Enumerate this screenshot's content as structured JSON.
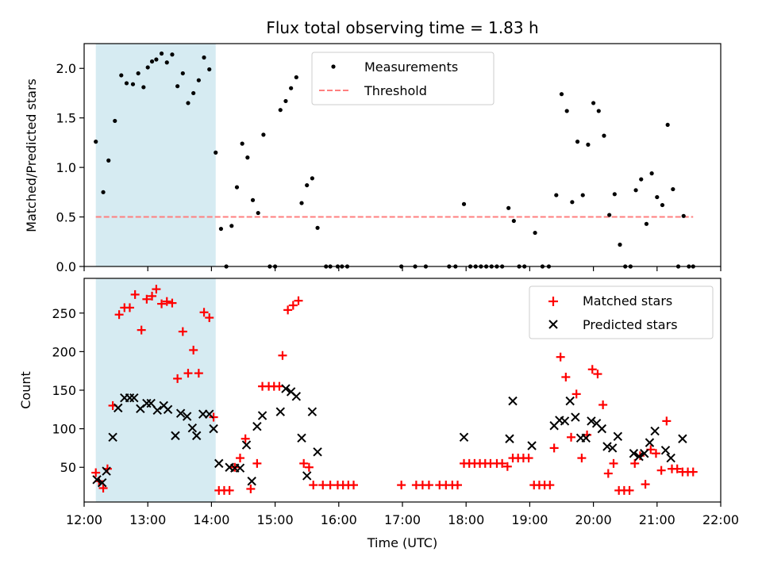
{
  "chart_data": [
    {
      "type": "scatter",
      "title": "Flux total observing time = 1.83 h",
      "xlabel": "",
      "ylabel": "Matched/Predicted stars",
      "xlim": [
        "12:00",
        "22:00"
      ],
      "ylim": [
        0,
        2.25
      ],
      "yticks": [
        "0.0",
        "0.5",
        "1.0",
        "1.5",
        "2.0"
      ],
      "grid": false,
      "legend_position": "upper-center",
      "highlight_span": {
        "x_start": "12:11",
        "x_end": "14:04",
        "color": "#add8e6"
      },
      "threshold": {
        "name": "Threshold",
        "y": 0.5,
        "x_start": "12:11",
        "x_end": "21:34",
        "color": "#ff7f7f"
      },
      "series": [
        {
          "name": "Measurements",
          "color": "#000000",
          "points": [
            [
              "12:11",
              1.26
            ],
            [
              "12:18",
              0.75
            ],
            [
              "12:23",
              1.07
            ],
            [
              "12:29",
              1.47
            ],
            [
              "12:35",
              1.93
            ],
            [
              "12:40",
              1.85
            ],
            [
              "12:46",
              1.84
            ],
            [
              "12:51",
              1.95
            ],
            [
              "12:56",
              1.81
            ],
            [
              "13:00",
              2.01
            ],
            [
              "13:04",
              2.07
            ],
            [
              "13:08",
              2.09
            ],
            [
              "13:13",
              2.15
            ],
            [
              "13:18",
              2.06
            ],
            [
              "13:23",
              2.14
            ],
            [
              "13:28",
              1.82
            ],
            [
              "13:33",
              1.95
            ],
            [
              "13:38",
              1.65
            ],
            [
              "13:43",
              1.75
            ],
            [
              "13:48",
              1.88
            ],
            [
              "13:53",
              2.11
            ],
            [
              "13:58",
              1.99
            ],
            [
              "14:04",
              1.15
            ],
            [
              "14:09",
              0.38
            ],
            [
              "14:14",
              0.0
            ],
            [
              "14:19",
              0.41
            ],
            [
              "14:24",
              0.8
            ],
            [
              "14:29",
              1.24
            ],
            [
              "14:34",
              1.1
            ],
            [
              "14:39",
              0.67
            ],
            [
              "14:44",
              0.54
            ],
            [
              "14:49",
              1.33
            ],
            [
              "14:55",
              0.0
            ],
            [
              "15:00",
              0.0
            ],
            [
              "15:05",
              1.58
            ],
            [
              "15:10",
              1.67
            ],
            [
              "15:15",
              1.8
            ],
            [
              "15:20",
              1.91
            ],
            [
              "15:25",
              0.64
            ],
            [
              "15:30",
              0.82
            ],
            [
              "15:35",
              0.89
            ],
            [
              "15:40",
              0.39
            ],
            [
              "15:48",
              0.0
            ],
            [
              "15:52",
              0.0
            ],
            [
              "15:59",
              0.0
            ],
            [
              "16:03",
              0.0
            ],
            [
              "16:08",
              0.0
            ],
            [
              "16:59",
              0.0
            ],
            [
              "17:12",
              0.0
            ],
            [
              "17:22",
              0.0
            ],
            [
              "17:44",
              0.0
            ],
            [
              "17:50",
              0.0
            ],
            [
              "17:58",
              0.63
            ],
            [
              "18:04",
              0.0
            ],
            [
              "18:09",
              0.0
            ],
            [
              "18:14",
              0.0
            ],
            [
              "18:19",
              0.0
            ],
            [
              "18:24",
              0.0
            ],
            [
              "18:29",
              0.0
            ],
            [
              "18:34",
              0.0
            ],
            [
              "18:40",
              0.59
            ],
            [
              "18:45",
              0.46
            ],
            [
              "18:50",
              0.0
            ],
            [
              "18:55",
              0.0
            ],
            [
              "19:05",
              0.34
            ],
            [
              "19:12",
              0.0
            ],
            [
              "19:18",
              0.0
            ],
            [
              "19:25",
              0.72
            ],
            [
              "19:30",
              1.74
            ],
            [
              "19:35",
              1.57
            ],
            [
              "19:40",
              0.65
            ],
            [
              "19:45",
              1.26
            ],
            [
              "19:50",
              0.72
            ],
            [
              "19:55",
              1.23
            ],
            [
              "20:00",
              1.65
            ],
            [
              "20:05",
              1.57
            ],
            [
              "20:10",
              1.32
            ],
            [
              "20:15",
              0.52
            ],
            [
              "20:20",
              0.73
            ],
            [
              "20:25",
              0.22
            ],
            [
              "20:30",
              0.0
            ],
            [
              "20:35",
              0.0
            ],
            [
              "20:40",
              0.77
            ],
            [
              "20:45",
              0.88
            ],
            [
              "20:50",
              0.43
            ],
            [
              "20:55",
              0.94
            ],
            [
              "21:00",
              0.7
            ],
            [
              "21:05",
              0.62
            ],
            [
              "21:10",
              1.43
            ],
            [
              "21:15",
              0.78
            ],
            [
              "21:20",
              0.0
            ],
            [
              "21:25",
              0.51
            ],
            [
              "21:30",
              0.0
            ],
            [
              "21:34",
              0.0
            ]
          ]
        }
      ]
    },
    {
      "type": "scatter",
      "title": "",
      "xlabel": "Time (UTC)",
      "ylabel": "Count",
      "xlim": [
        "12:00",
        "22:00"
      ],
      "ylim": [
        5,
        295
      ],
      "yticks": [
        "50",
        "100",
        "150",
        "200",
        "250"
      ],
      "xticks": [
        "12:00",
        "13:00",
        "14:00",
        "15:00",
        "16:00",
        "17:00",
        "18:00",
        "19:00",
        "20:00",
        "21:00",
        "22:00"
      ],
      "grid": false,
      "legend_position": "upper-right",
      "highlight_span": {
        "x_start": "12:11",
        "x_end": "14:04",
        "color": "#add8e6"
      },
      "series": [
        {
          "name": "Matched stars",
          "marker": "+",
          "color": "#ff0000",
          "points": [
            [
              "12:11",
              43
            ],
            [
              "12:14",
              32
            ],
            [
              "12:18",
              23
            ],
            [
              "12:22",
              48
            ],
            [
              "12:27",
              130
            ],
            [
              "12:33",
              248
            ],
            [
              "12:38",
              257
            ],
            [
              "12:43",
              257
            ],
            [
              "12:48",
              274
            ],
            [
              "12:54",
              228
            ],
            [
              "12:59",
              268
            ],
            [
              "13:04",
              272
            ],
            [
              "13:08",
              281
            ],
            [
              "13:13",
              262
            ],
            [
              "13:18",
              265
            ],
            [
              "13:23",
              263
            ],
            [
              "13:28",
              165
            ],
            [
              "13:33",
              226
            ],
            [
              "13:38",
              172
            ],
            [
              "13:43",
              202
            ],
            [
              "13:48",
              172
            ],
            [
              "13:53",
              251
            ],
            [
              "13:58",
              244
            ],
            [
              "14:02",
              115
            ],
            [
              "14:07",
              20
            ],
            [
              "14:12",
              20
            ],
            [
              "14:17",
              20
            ],
            [
              "14:22",
              50
            ],
            [
              "14:27",
              62
            ],
            [
              "14:32",
              87
            ],
            [
              "14:37",
              22
            ],
            [
              "14:43",
              55
            ],
            [
              "14:48",
              155
            ],
            [
              "14:54",
              155
            ],
            [
              "14:59",
              155
            ],
            [
              "15:04",
              155
            ],
            [
              "15:07",
              195
            ],
            [
              "15:12",
              254
            ],
            [
              "15:17",
              260
            ],
            [
              "15:22",
              266
            ],
            [
              "15:27",
              55
            ],
            [
              "15:32",
              50
            ],
            [
              "15:36",
              27
            ],
            [
              "15:45",
              27
            ],
            [
              "15:52",
              27
            ],
            [
              "15:59",
              27
            ],
            [
              "16:04",
              27
            ],
            [
              "16:09",
              27
            ],
            [
              "16:14",
              27
            ],
            [
              "16:59",
              27
            ],
            [
              "17:13",
              27
            ],
            [
              "17:19",
              27
            ],
            [
              "17:25",
              27
            ],
            [
              "17:35",
              27
            ],
            [
              "17:41",
              27
            ],
            [
              "17:47",
              27
            ],
            [
              "17:52",
              27
            ],
            [
              "17:58",
              55
            ],
            [
              "18:03",
              55
            ],
            [
              "18:08",
              55
            ],
            [
              "18:13",
              55
            ],
            [
              "18:18",
              55
            ],
            [
              "18:23",
              55
            ],
            [
              "18:29",
              55
            ],
            [
              "18:34",
              55
            ],
            [
              "18:39",
              51
            ],
            [
              "18:44",
              62
            ],
            [
              "18:49",
              62
            ],
            [
              "18:54",
              62
            ],
            [
              "18:59",
              62
            ],
            [
              "19:04",
              27
            ],
            [
              "19:09",
              27
            ],
            [
              "19:14",
              27
            ],
            [
              "19:19",
              27
            ],
            [
              "19:23",
              75
            ],
            [
              "19:29",
              193
            ],
            [
              "19:34",
              167
            ],
            [
              "19:39",
              89
            ],
            [
              "19:44",
              145
            ],
            [
              "19:49",
              62
            ],
            [
              "19:54",
              92
            ],
            [
              "19:59",
              177
            ],
            [
              "20:04",
              171
            ],
            [
              "20:09",
              131
            ],
            [
              "20:14",
              42
            ],
            [
              "20:19",
              55
            ],
            [
              "20:24",
              20
            ],
            [
              "20:29",
              20
            ],
            [
              "20:34",
              20
            ],
            [
              "20:39",
              55
            ],
            [
              "20:44",
              65
            ],
            [
              "20:49",
              28
            ],
            [
              "20:54",
              73
            ],
            [
              "20:59",
              68
            ],
            [
              "21:04",
              46
            ],
            [
              "21:09",
              110
            ],
            [
              "21:14",
              48
            ],
            [
              "21:19",
              48
            ],
            [
              "21:24",
              44
            ],
            [
              "21:29",
              44
            ],
            [
              "21:34",
              44
            ]
          ]
        },
        {
          "name": "Predicted stars",
          "marker": "x",
          "color": "#000000",
          "points": [
            [
              "12:12",
              34
            ],
            [
              "12:17",
              30
            ],
            [
              "12:21",
              45
            ],
            [
              "12:27",
              89
            ],
            [
              "12:32",
              127
            ],
            [
              "12:38",
              140
            ],
            [
              "12:43",
              140
            ],
            [
              "12:47",
              140
            ],
            [
              "12:53",
              126
            ],
            [
              "12:59",
              133
            ],
            [
              "13:03",
              133
            ],
            [
              "13:09",
              124
            ],
            [
              "13:15",
              130
            ],
            [
              "13:19",
              125
            ],
            [
              "13:26",
              91
            ],
            [
              "13:31",
              120
            ],
            [
              "13:37",
              116
            ],
            [
              "13:42",
              101
            ],
            [
              "13:46",
              91
            ],
            [
              "13:52",
              119
            ],
            [
              "13:58",
              119
            ],
            [
              "14:02",
              100
            ],
            [
              "14:07",
              55
            ],
            [
              "14:17",
              50
            ],
            [
              "14:22",
              49
            ],
            [
              "14:27",
              49
            ],
            [
              "14:33",
              79
            ],
            [
              "14:38",
              32
            ],
            [
              "14:43",
              103
            ],
            [
              "14:48",
              117
            ],
            [
              "15:05",
              122
            ],
            [
              "15:10",
              152
            ],
            [
              "15:15",
              148
            ],
            [
              "15:20",
              142
            ],
            [
              "15:25",
              88
            ],
            [
              "15:30",
              39
            ],
            [
              "15:35",
              122
            ],
            [
              "15:40",
              70
            ],
            [
              "17:58",
              89
            ],
            [
              "18:41",
              87
            ],
            [
              "18:44",
              136
            ],
            [
              "19:02",
              78
            ],
            [
              "19:23",
              104
            ],
            [
              "19:28",
              111
            ],
            [
              "19:33",
              110
            ],
            [
              "19:38",
              136
            ],
            [
              "19:43",
              115
            ],
            [
              "19:48",
              88
            ],
            [
              "19:53",
              88
            ],
            [
              "19:58",
              110
            ],
            [
              "20:03",
              107
            ],
            [
              "20:08",
              100
            ],
            [
              "20:13",
              77
            ],
            [
              "20:18",
              75
            ],
            [
              "20:23",
              90
            ],
            [
              "20:38",
              68
            ],
            [
              "20:43",
              64
            ],
            [
              "20:48",
              68
            ],
            [
              "20:53",
              82
            ],
            [
              "20:58",
              97
            ],
            [
              "21:08",
              72
            ],
            [
              "21:13",
              62
            ],
            [
              "21:24",
              87
            ]
          ]
        }
      ]
    }
  ]
}
